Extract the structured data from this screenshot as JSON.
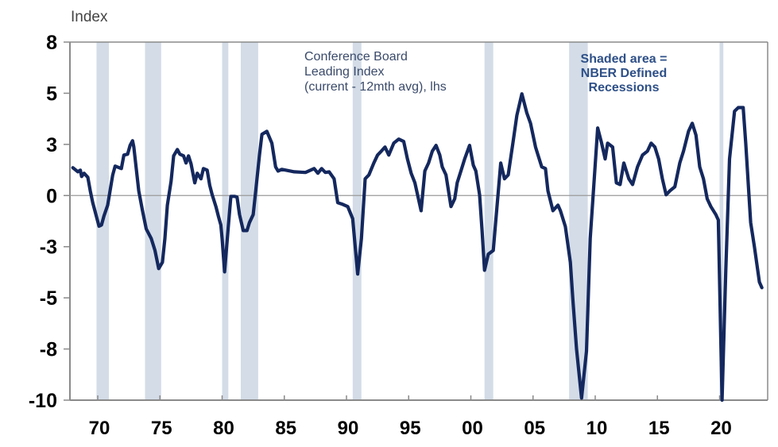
{
  "chart_data": {
    "type": "line",
    "title": "",
    "ylabel": "Index",
    "xlabel": "",
    "ylim": [
      -10,
      7.5
    ],
    "xlim": [
      1967.8,
      1973.8
    ],
    "yticks": [
      {
        "value": 7.5,
        "label": "8"
      },
      {
        "value": 5,
        "label": "5"
      },
      {
        "value": 2.5,
        "label": "3"
      },
      {
        "value": 0,
        "label": "0"
      },
      {
        "value": -2.5,
        "label": "-3"
      },
      {
        "value": -5,
        "label": "-5"
      },
      {
        "value": -7.5,
        "label": "-8"
      },
      {
        "value": -10,
        "label": "-10"
      }
    ],
    "xticks": [
      {
        "value": 1970,
        "label": "70"
      },
      {
        "value": 1975,
        "label": "75"
      },
      {
        "value": 1980,
        "label": "80"
      },
      {
        "value": 1985,
        "label": "85"
      },
      {
        "value": 1990,
        "label": "90"
      },
      {
        "value": 1995,
        "label": "95"
      },
      {
        "value": 2000,
        "label": "00"
      },
      {
        "value": 2005,
        "label": "05"
      },
      {
        "value": 2010,
        "label": "10"
      },
      {
        "value": 2015,
        "label": "15"
      },
      {
        "value": 2020,
        "label": "20"
      }
    ],
    "grid": false,
    "zero_line": true,
    "annotations": [
      {
        "id": "series",
        "lines": [
          "Conference Board",
          "Leading Index",
          "(current - 12mth avg), lhs"
        ]
      },
      {
        "id": "recession",
        "lines": [
          "Shaded area =",
          "NBER Defined",
          "Recessions"
        ]
      }
    ],
    "recessions": [
      [
        1969.9,
        1970.9
      ],
      [
        1973.8,
        1975.1
      ],
      [
        1980.0,
        1980.5
      ],
      [
        1981.5,
        1982.9
      ],
      [
        1990.5,
        1991.2
      ],
      [
        2001.1,
        2001.8
      ],
      [
        2007.9,
        2009.4
      ],
      [
        2020.0,
        2020.3
      ]
    ],
    "series": [
      {
        "name": "Conference Board Leading Index (current - 12mth avg), lhs",
        "color": "#14285e",
        "points": [
          [
            1968.0,
            1.36
          ],
          [
            1968.4,
            1.16
          ],
          [
            1968.6,
            1.24
          ],
          [
            1968.7,
            0.93
          ],
          [
            1968.9,
            1.09
          ],
          [
            1969.2,
            0.89
          ],
          [
            1969.4,
            0.23
          ],
          [
            1969.6,
            -0.35
          ],
          [
            1970.1,
            -1.5
          ],
          [
            1970.3,
            -1.44
          ],
          [
            1970.5,
            -1.0
          ],
          [
            1970.8,
            -0.47
          ],
          [
            1971.2,
            1.0
          ],
          [
            1971.4,
            1.44
          ],
          [
            1971.9,
            1.32
          ],
          [
            1972.1,
            1.98
          ],
          [
            1972.4,
            2.02
          ],
          [
            1972.6,
            2.45
          ],
          [
            1972.8,
            2.68
          ],
          [
            1972.9,
            2.37
          ],
          [
            1973.3,
            0.23
          ],
          [
            1973.6,
            -0.74
          ],
          [
            1973.9,
            -1.63
          ],
          [
            1974.3,
            -2.1
          ],
          [
            1974.6,
            -2.68
          ],
          [
            1974.9,
            -3.57
          ],
          [
            1975.2,
            -3.26
          ],
          [
            1975.4,
            -2.1
          ],
          [
            1975.6,
            -0.47
          ],
          [
            1975.9,
            0.7
          ],
          [
            1976.1,
            1.94
          ],
          [
            1976.4,
            2.25
          ],
          [
            1976.6,
            2.02
          ],
          [
            1976.9,
            1.94
          ],
          [
            1977.1,
            1.59
          ],
          [
            1977.3,
            1.94
          ],
          [
            1977.5,
            1.55
          ],
          [
            1977.8,
            0.62
          ],
          [
            1978.0,
            1.09
          ],
          [
            1978.3,
            0.82
          ],
          [
            1978.5,
            1.32
          ],
          [
            1978.8,
            1.24
          ],
          [
            1979.0,
            0.5
          ],
          [
            1979.2,
            0.04
          ],
          [
            1979.5,
            -0.54
          ],
          [
            1979.7,
            -1.01
          ],
          [
            1979.9,
            -1.44
          ],
          [
            1980.0,
            -2.1
          ],
          [
            1980.2,
            -3.73
          ],
          [
            1980.5,
            -1.51
          ],
          [
            1980.7,
            -0.04
          ],
          [
            1981.0,
            -0.04
          ],
          [
            1981.2,
            -0.08
          ],
          [
            1981.4,
            -0.93
          ],
          [
            1981.7,
            -1.71
          ],
          [
            1982.0,
            -1.71
          ],
          [
            1982.2,
            -1.32
          ],
          [
            1982.5,
            -0.93
          ],
          [
            1982.7,
            0.23
          ],
          [
            1983.0,
            1.98
          ],
          [
            1983.2,
            2.99
          ],
          [
            1983.6,
            3.14
          ],
          [
            1984.0,
            2.56
          ],
          [
            1984.3,
            1.4
          ],
          [
            1984.5,
            1.2
          ],
          [
            1984.8,
            1.28
          ],
          [
            1985.8,
            1.16
          ],
          [
            1986.7,
            1.13
          ],
          [
            1987.4,
            1.32
          ],
          [
            1987.7,
            1.09
          ],
          [
            1988.0,
            1.32
          ],
          [
            1988.3,
            1.13
          ],
          [
            1988.6,
            1.16
          ],
          [
            1989.0,
            0.82
          ],
          [
            1989.3,
            -0.35
          ],
          [
            1989.7,
            -0.43
          ],
          [
            1990.1,
            -0.54
          ],
          [
            1990.5,
            -1.13
          ],
          [
            1990.9,
            -3.84
          ],
          [
            1991.2,
            -2.1
          ],
          [
            1991.5,
            0.82
          ],
          [
            1991.8,
            1.01
          ],
          [
            1992.2,
            1.59
          ],
          [
            1992.5,
            1.98
          ],
          [
            1992.8,
            2.17
          ],
          [
            1993.1,
            2.37
          ],
          [
            1993.4,
            1.98
          ],
          [
            1993.8,
            2.56
          ],
          [
            1994.2,
            2.76
          ],
          [
            1994.6,
            2.64
          ],
          [
            1994.9,
            1.79
          ],
          [
            1995.2,
            1.09
          ],
          [
            1995.5,
            0.62
          ],
          [
            1996.0,
            -0.74
          ],
          [
            1996.3,
            1.2
          ],
          [
            1996.6,
            1.59
          ],
          [
            1996.9,
            2.17
          ],
          [
            1997.2,
            2.45
          ],
          [
            1997.5,
            1.98
          ],
          [
            1997.7,
            1.4
          ],
          [
            1998.0,
            1.01
          ],
          [
            1998.4,
            -0.54
          ],
          [
            1998.7,
            -0.16
          ],
          [
            1998.9,
            0.62
          ],
          [
            1999.2,
            1.2
          ],
          [
            1999.5,
            1.79
          ],
          [
            1999.9,
            2.45
          ],
          [
            2000.2,
            1.48
          ],
          [
            2000.4,
            1.2
          ],
          [
            2000.7,
            0.04
          ],
          [
            2000.9,
            -1.71
          ],
          [
            2001.1,
            -3.65
          ],
          [
            2001.4,
            -2.87
          ],
          [
            2001.8,
            -2.68
          ],
          [
            2002.1,
            -0.54
          ],
          [
            2002.4,
            1.59
          ],
          [
            2002.7,
            0.82
          ],
          [
            2003.0,
            1.01
          ],
          [
            2003.4,
            2.64
          ],
          [
            2003.7,
            3.92
          ],
          [
            2004.1,
            4.97
          ],
          [
            2004.5,
            4.04
          ],
          [
            2004.8,
            3.53
          ],
          [
            2005.2,
            2.37
          ],
          [
            2005.4,
            1.98
          ],
          [
            2005.7,
            1.4
          ],
          [
            2006.0,
            1.32
          ],
          [
            2006.2,
            0.23
          ],
          [
            2006.6,
            -0.74
          ],
          [
            2007.0,
            -0.47
          ],
          [
            2007.2,
            -0.74
          ],
          [
            2007.6,
            -1.51
          ],
          [
            2008.0,
            -3.26
          ],
          [
            2008.2,
            -5.05
          ],
          [
            2008.5,
            -7.5
          ],
          [
            2008.9,
            -9.9
          ],
          [
            2009.3,
            -7.61
          ],
          [
            2009.6,
            -2.1
          ],
          [
            2010.2,
            3.3
          ],
          [
            2010.5,
            2.6
          ],
          [
            2010.8,
            1.79
          ],
          [
            2011.0,
            2.56
          ],
          [
            2011.4,
            2.37
          ],
          [
            2011.7,
            0.62
          ],
          [
            2012.0,
            0.54
          ],
          [
            2012.3,
            1.59
          ],
          [
            2012.7,
            0.82
          ],
          [
            2013.0,
            0.54
          ],
          [
            2013.4,
            1.4
          ],
          [
            2013.8,
            1.98
          ],
          [
            2014.2,
            2.17
          ],
          [
            2014.5,
            2.56
          ],
          [
            2014.8,
            2.37
          ],
          [
            2015.1,
            1.79
          ],
          [
            2015.4,
            0.82
          ],
          [
            2015.7,
            0.04
          ],
          [
            2016.0,
            0.23
          ],
          [
            2016.4,
            0.43
          ],
          [
            2016.8,
            1.59
          ],
          [
            2017.1,
            2.17
          ],
          [
            2017.5,
            3.14
          ],
          [
            2017.8,
            3.53
          ],
          [
            2018.1,
            2.95
          ],
          [
            2018.4,
            1.4
          ],
          [
            2018.7,
            0.82
          ],
          [
            2019.0,
            -0.16
          ],
          [
            2019.3,
            -0.54
          ],
          [
            2019.7,
            -0.93
          ],
          [
            2019.9,
            -1.2
          ],
          [
            2020.2,
            -10.0
          ],
          [
            2020.5,
            -3.65
          ],
          [
            2020.8,
            1.79
          ],
          [
            2021.2,
            4.12
          ],
          [
            2021.5,
            4.3
          ],
          [
            2021.9,
            4.3
          ],
          [
            2022.1,
            2.56
          ],
          [
            2022.5,
            -1.32
          ],
          [
            2022.8,
            -2.5
          ],
          [
            2023.2,
            -4.23
          ],
          [
            2023.4,
            -4.5
          ]
        ]
      }
    ]
  }
}
